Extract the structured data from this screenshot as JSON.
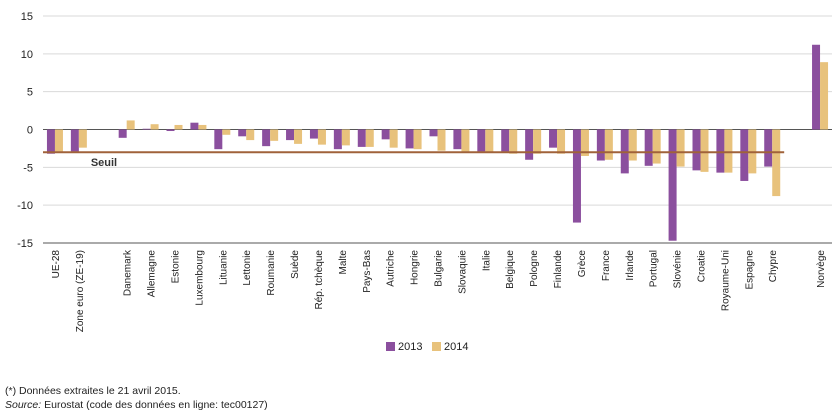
{
  "chart_data": {
    "type": "bar",
    "categories": [
      "UE-28",
      "Zone euro (ZE-19)",
      "",
      "Danemark",
      "Allemagne",
      "Estonie",
      "Luxembourg",
      "Lituanie",
      "Lettonie",
      "Roumanie",
      "Suède",
      "Rép. tchèque",
      "Malte",
      "Pays-Bas",
      "Autriche",
      "Hongrie",
      "Bulgarie",
      "Slovaquie",
      "Italie",
      "Belgique",
      "Pologne",
      "Finlande",
      "Grèce",
      "France",
      "Irlande",
      "Portugal",
      "Slovénie",
      "Croatie",
      "Royaume-Uni",
      "Espagne",
      "Chypre",
      "",
      "Norvège"
    ],
    "series": [
      {
        "name": "2013",
        "color": "#8b4f9e",
        "values": [
          -3.2,
          -2.9,
          null,
          -1.1,
          0.1,
          -0.2,
          0.9,
          -2.6,
          -0.9,
          -2.2,
          -1.4,
          -1.2,
          -2.6,
          -2.3,
          -1.3,
          -2.5,
          -0.9,
          -2.6,
          -2.9,
          -2.9,
          -4.0,
          -2.4,
          -12.3,
          -4.1,
          -5.8,
          -4.8,
          -14.7,
          -5.4,
          -5.7,
          -6.8,
          -4.9,
          null,
          11.2
        ]
      },
      {
        "name": "2014",
        "color": "#e8c27c",
        "values": [
          -2.9,
          -2.4,
          null,
          1.2,
          0.7,
          0.6,
          0.6,
          -0.7,
          -1.4,
          -1.5,
          -1.9,
          -2.0,
          -2.1,
          -2.3,
          -2.4,
          -2.6,
          -2.8,
          -2.9,
          -3.0,
          -3.2,
          -3.2,
          -3.2,
          -3.5,
          -4.0,
          -4.1,
          -4.5,
          -4.9,
          -5.6,
          -5.7,
          -5.8,
          -8.8,
          null,
          8.9
        ]
      }
    ],
    "ylim": [
      -15,
      15
    ],
    "yticks": [
      15,
      10,
      5,
      0,
      -5,
      -10,
      -15
    ],
    "grid": true,
    "threshold": {
      "label": "Seuil",
      "value": -3,
      "color": "#a0623a"
    },
    "legend_position": "bottom-center"
  },
  "footnote": "(*) Données extraites le 21 avril 2015.",
  "source": {
    "label": "Source:",
    "text": " Eurostat (code des données en ligne: tec00127)"
  }
}
